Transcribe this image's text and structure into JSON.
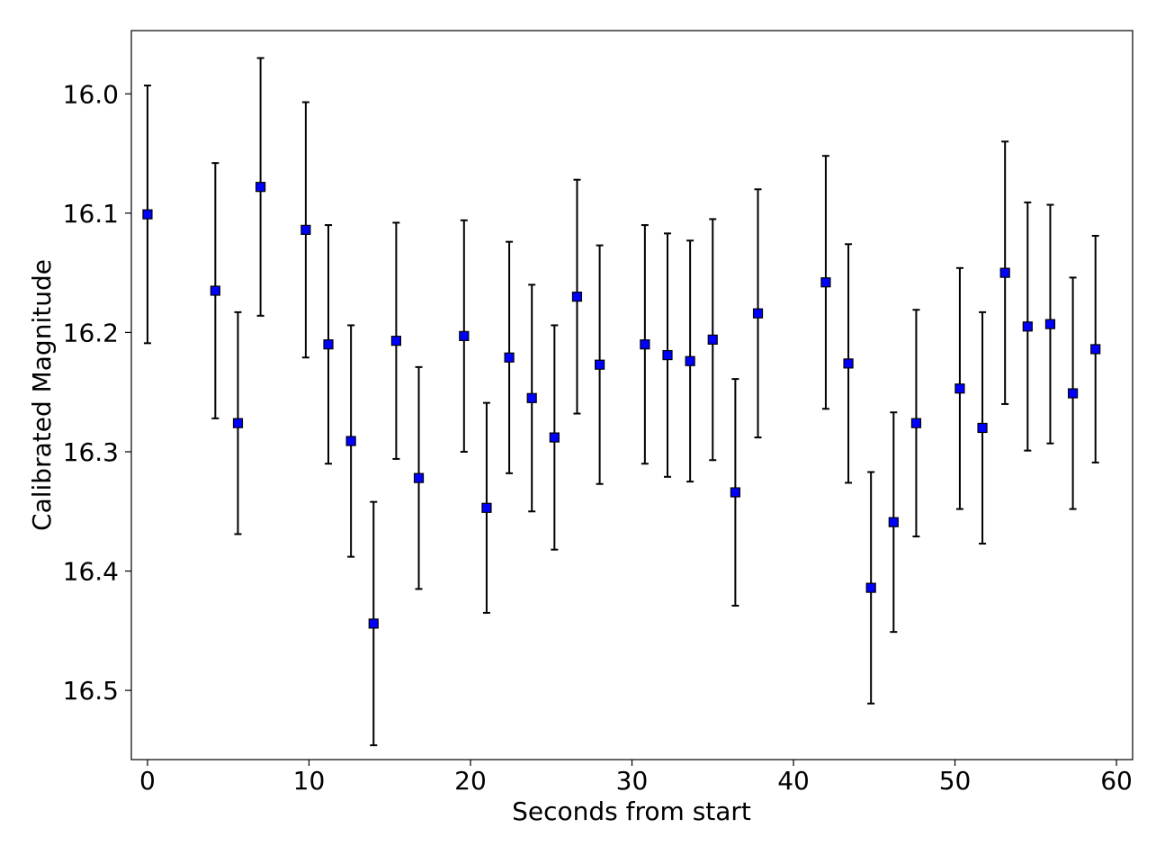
{
  "chart_data": {
    "type": "scatter",
    "title": "",
    "xlabel": "Seconds from start",
    "ylabel": "Calibrated Magnitude",
    "xlim": [
      -1,
      61
    ],
    "ylim": [
      16.558,
      15.947
    ],
    "y_inverted": true,
    "grid": false,
    "xticks": [
      0,
      10,
      20,
      30,
      40,
      50,
      60
    ],
    "xtick_labels": [
      "0",
      "10",
      "20",
      "30",
      "40",
      "50",
      "60"
    ],
    "yticks": [
      16.0,
      16.1,
      16.2,
      16.3,
      16.4,
      16.5
    ],
    "ytick_labels": [
      "16.0",
      "16.1",
      "16.2",
      "16.3",
      "16.4",
      "16.5"
    ],
    "marker": "square",
    "marker_color": "#0000ff",
    "marker_edge_color": "#000000",
    "errorbar_color": "#000000",
    "series": [
      {
        "name": "",
        "points": [
          {
            "x": 0.0,
            "y": 16.101,
            "err": 0.108
          },
          {
            "x": 4.2,
            "y": 16.165,
            "err": 0.107
          },
          {
            "x": 5.6,
            "y": 16.276,
            "err": 0.093
          },
          {
            "x": 7.0,
            "y": 16.078,
            "err": 0.108
          },
          {
            "x": 9.8,
            "y": 16.114,
            "err": 0.107
          },
          {
            "x": 11.2,
            "y": 16.21,
            "err": 0.1
          },
          {
            "x": 12.6,
            "y": 16.291,
            "err": 0.097
          },
          {
            "x": 14.0,
            "y": 16.444,
            "err": 0.102
          },
          {
            "x": 15.4,
            "y": 16.207,
            "err": 0.099
          },
          {
            "x": 16.8,
            "y": 16.322,
            "err": 0.093
          },
          {
            "x": 19.6,
            "y": 16.203,
            "err": 0.097
          },
          {
            "x": 21.0,
            "y": 16.347,
            "err": 0.088
          },
          {
            "x": 22.4,
            "y": 16.221,
            "err": 0.097
          },
          {
            "x": 23.8,
            "y": 16.255,
            "err": 0.095
          },
          {
            "x": 25.2,
            "y": 16.288,
            "err": 0.094
          },
          {
            "x": 26.6,
            "y": 16.17,
            "err": 0.098
          },
          {
            "x": 28.0,
            "y": 16.227,
            "err": 0.1
          },
          {
            "x": 30.8,
            "y": 16.21,
            "err": 0.1
          },
          {
            "x": 32.2,
            "y": 16.219,
            "err": 0.102
          },
          {
            "x": 33.6,
            "y": 16.224,
            "err": 0.101
          },
          {
            "x": 35.0,
            "y": 16.206,
            "err": 0.101
          },
          {
            "x": 36.4,
            "y": 16.334,
            "err": 0.095
          },
          {
            "x": 37.8,
            "y": 16.184,
            "err": 0.104
          },
          {
            "x": 42.0,
            "y": 16.158,
            "err": 0.106
          },
          {
            "x": 43.4,
            "y": 16.226,
            "err": 0.1
          },
          {
            "x": 44.8,
            "y": 16.414,
            "err": 0.097
          },
          {
            "x": 46.2,
            "y": 16.359,
            "err": 0.092
          },
          {
            "x": 47.6,
            "y": 16.276,
            "err": 0.095
          },
          {
            "x": 50.3,
            "y": 16.247,
            "err": 0.101
          },
          {
            "x": 51.7,
            "y": 16.28,
            "err": 0.097
          },
          {
            "x": 53.1,
            "y": 16.15,
            "err": 0.11
          },
          {
            "x": 54.5,
            "y": 16.195,
            "err": 0.104
          },
          {
            "x": 55.9,
            "y": 16.193,
            "err": 0.1
          },
          {
            "x": 57.3,
            "y": 16.251,
            "err": 0.097
          },
          {
            "x": 58.7,
            "y": 16.214,
            "err": 0.095
          }
        ]
      }
    ]
  }
}
